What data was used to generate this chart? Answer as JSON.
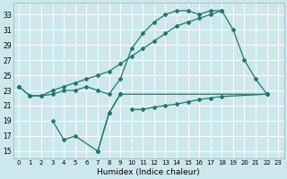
{
  "xlabel": "Humidex (Indice chaleur)",
  "background_color": "#cce8ed",
  "grid_color": "#ffffff",
  "line_color": "#1a7a6e",
  "xlim": [
    -0.5,
    23.5
  ],
  "ylim": [
    14.0,
    34.5
  ],
  "yticks": [
    15,
    17,
    19,
    21,
    23,
    25,
    27,
    29,
    31,
    33
  ],
  "xticks": [
    0,
    1,
    2,
    3,
    4,
    5,
    6,
    7,
    8,
    9,
    10,
    11,
    12,
    13,
    14,
    15,
    16,
    17,
    18,
    19,
    20,
    21,
    22,
    23
  ],
  "series": [
    {
      "x": [
        0,
        1,
        2,
        3,
        4,
        5,
        6,
        7,
        8,
        9,
        10,
        11,
        12,
        13,
        14,
        15,
        16,
        17,
        18,
        19,
        20,
        21,
        22
      ],
      "y": [
        23.5,
        22.3,
        22.3,
        22.5,
        23.0,
        23.0,
        23.5,
        23.0,
        22.5,
        24.5,
        28.5,
        30.5,
        32.0,
        33.0,
        33.5,
        33.5,
        33.0,
        33.5,
        33.5,
        31.0,
        27.0,
        24.5,
        22.5
      ]
    },
    {
      "x": [
        0,
        1,
        2,
        3,
        4,
        5,
        6,
        7,
        8,
        9,
        10,
        11,
        12,
        13,
        14,
        15,
        16,
        17,
        18
      ],
      "y": [
        23.5,
        22.3,
        22.3,
        23.0,
        23.5,
        24.0,
        24.5,
        25.0,
        25.5,
        26.5,
        27.5,
        28.5,
        29.5,
        30.5,
        31.5,
        32.0,
        32.5,
        33.0,
        33.5
      ]
    },
    {
      "x": [
        3,
        4,
        5,
        7,
        8,
        9
      ],
      "y": [
        19.0,
        16.5,
        17.0,
        15.0,
        20.0,
        22.5
      ]
    },
    {
      "x": [
        3,
        4,
        5
      ],
      "y": [
        19.0,
        16.5,
        17.0
      ]
    },
    {
      "x": [
        7,
        8,
        9,
        22
      ],
      "y": [
        15.0,
        20.0,
        22.5,
        22.5
      ]
    },
    {
      "x": [
        10,
        11,
        12,
        13,
        14,
        15,
        16,
        17,
        18,
        22
      ],
      "y": [
        20.5,
        20.5,
        20.8,
        21.0,
        21.2,
        21.5,
        21.8,
        22.0,
        22.2,
        22.5
      ]
    }
  ]
}
